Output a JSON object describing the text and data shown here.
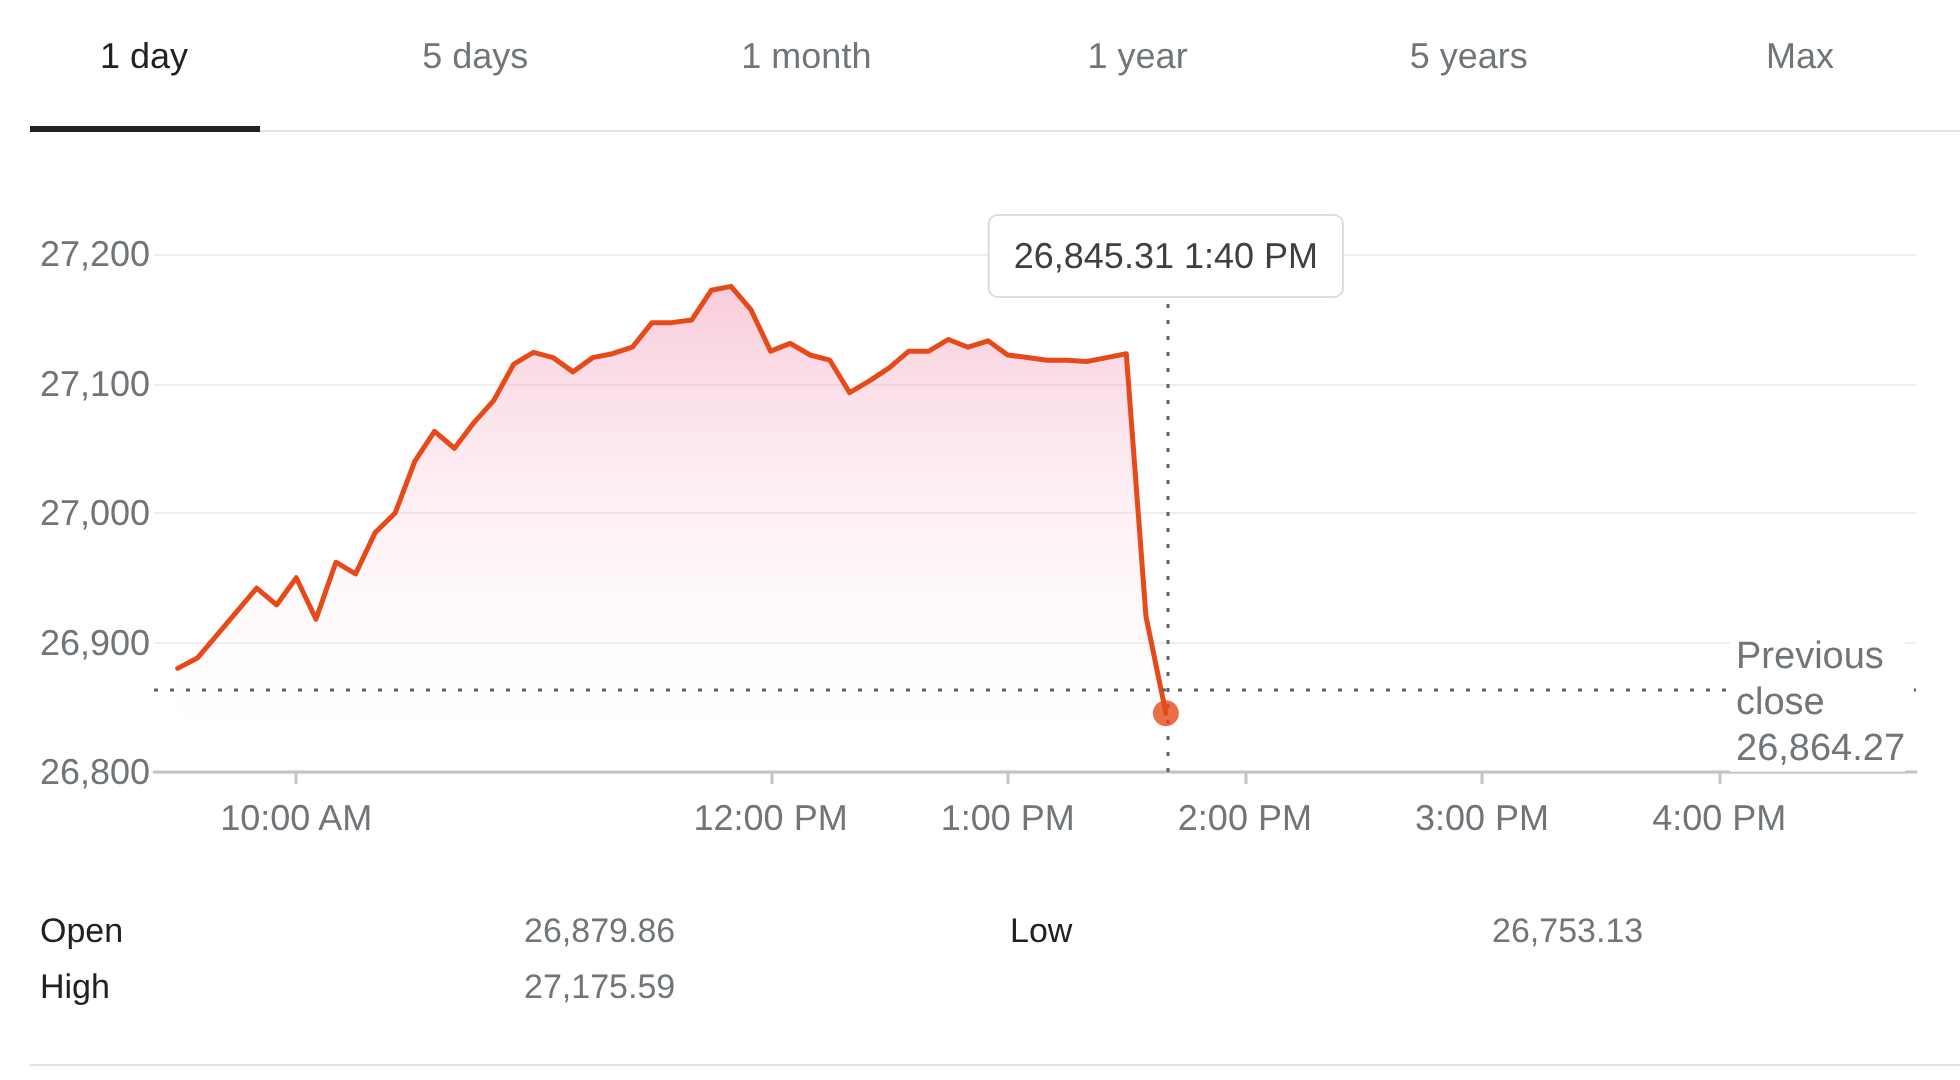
{
  "chart_data": {
    "type": "area",
    "x": [
      9.5,
      9.583,
      9.667,
      9.75,
      9.833,
      9.917,
      10,
      10.083,
      10.167,
      10.25,
      10.333,
      10.417,
      10.5,
      10.583,
      10.667,
      10.75,
      10.833,
      10.917,
      11,
      11.083,
      11.167,
      11.25,
      11.333,
      11.417,
      11.5,
      11.583,
      11.667,
      11.75,
      11.833,
      11.917,
      12,
      12.083,
      12.167,
      12.25,
      12.333,
      12.417,
      12.5,
      12.583,
      12.667,
      12.75,
      12.833,
      12.917,
      13,
      13.083,
      13.167,
      13.25,
      13.333,
      13.417,
      13.5,
      13.583,
      13.667
    ],
    "series": [
      {
        "color": "#e64a19",
        "values": [
          26880,
          26888,
          26906,
          26924,
          26942,
          26929,
          26950,
          26918,
          26962,
          26953,
          26985,
          27000,
          27040,
          27063,
          27050,
          27070,
          27087,
          27115,
          27124,
          27120,
          27109,
          27120,
          27123,
          27128,
          27147,
          27147,
          27149,
          27172,
          27175,
          27157,
          27125,
          27131,
          27122,
          27118,
          27093,
          27102,
          27112,
          27125,
          27125,
          27134,
          27128,
          27133,
          27122,
          27120,
          27118,
          27118,
          27117,
          27120,
          27123,
          26920,
          26845.31
        ]
      },
      {
        "type": "scatter",
        "color": "#e64a19",
        "x": [
          13.667
        ],
        "values": [
          26845.31
        ]
      }
    ],
    "xlim": [
      9.4,
      16.83
    ],
    "xticks": [
      {
        "value": 10,
        "label": "10:00 AM"
      },
      {
        "value": 12,
        "label": "12:00 PM"
      },
      {
        "value": 13,
        "label": "1:00 PM"
      },
      {
        "value": 14,
        "label": "2:00 PM"
      },
      {
        "value": 15,
        "label": "3:00 PM"
      },
      {
        "value": 16,
        "label": "4:00 PM"
      }
    ],
    "ylim": [
      26800,
      27200
    ],
    "yticks": [
      {
        "value": 26800,
        "label": "26,800"
      },
      {
        "value": 26900,
        "label": "26,900"
      },
      {
        "value": 27000,
        "label": "27,000"
      },
      {
        "value": 27100,
        "label": "27,100"
      },
      {
        "value": 27200,
        "label": "27,200"
      }
    ],
    "grid": "y",
    "ref_lines": [
      {
        "axis": "y",
        "value": 26864.27,
        "label": "Previous close 26,864.27",
        "color": "#5f6368",
        "line_style": "dotted"
      },
      {
        "axis": "x",
        "value": 13.667,
        "color": "#5f6368",
        "line_style": "dotted"
      }
    ],
    "annotations": [
      "26,845.31 1:40 PM",
      "1 day",
      "5 days",
      "1 month",
      "1 year",
      "5 years",
      "Max",
      "Open",
      "26,879.86",
      "High",
      "27,175.59",
      "Low",
      "26,753.13"
    ]
  }
}
